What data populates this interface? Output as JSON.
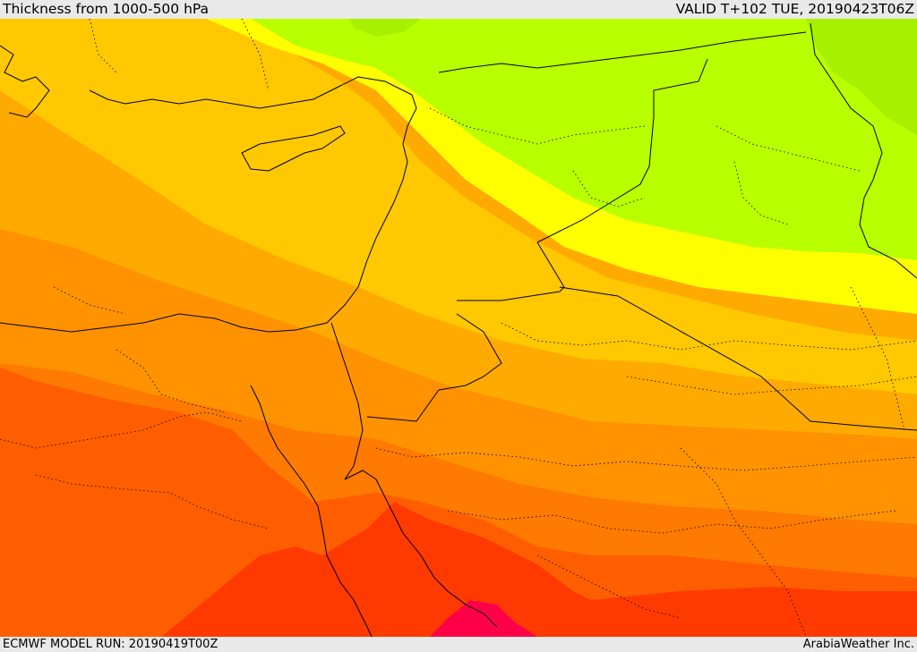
{
  "header": {
    "title": "Thickness from 1000-500 hPa",
    "valid": "VALID T+102 TUE, 20190423T06Z"
  },
  "footer": {
    "model_run": "ECMWF MODEL RUN: 20190419T00Z",
    "credit": "ArabiaWeather Inc."
  },
  "map": {
    "field": "thickness",
    "palette": [
      "#b8ff00",
      "#ffff00",
      "#ffe000",
      "#ffc800",
      "#ffaa00",
      "#ff9200",
      "#ff7a00",
      "#ff5e00",
      "#ff3a00",
      "#ff0040"
    ],
    "land_border_color": "#000000",
    "background_color": "#ffaa00"
  }
}
